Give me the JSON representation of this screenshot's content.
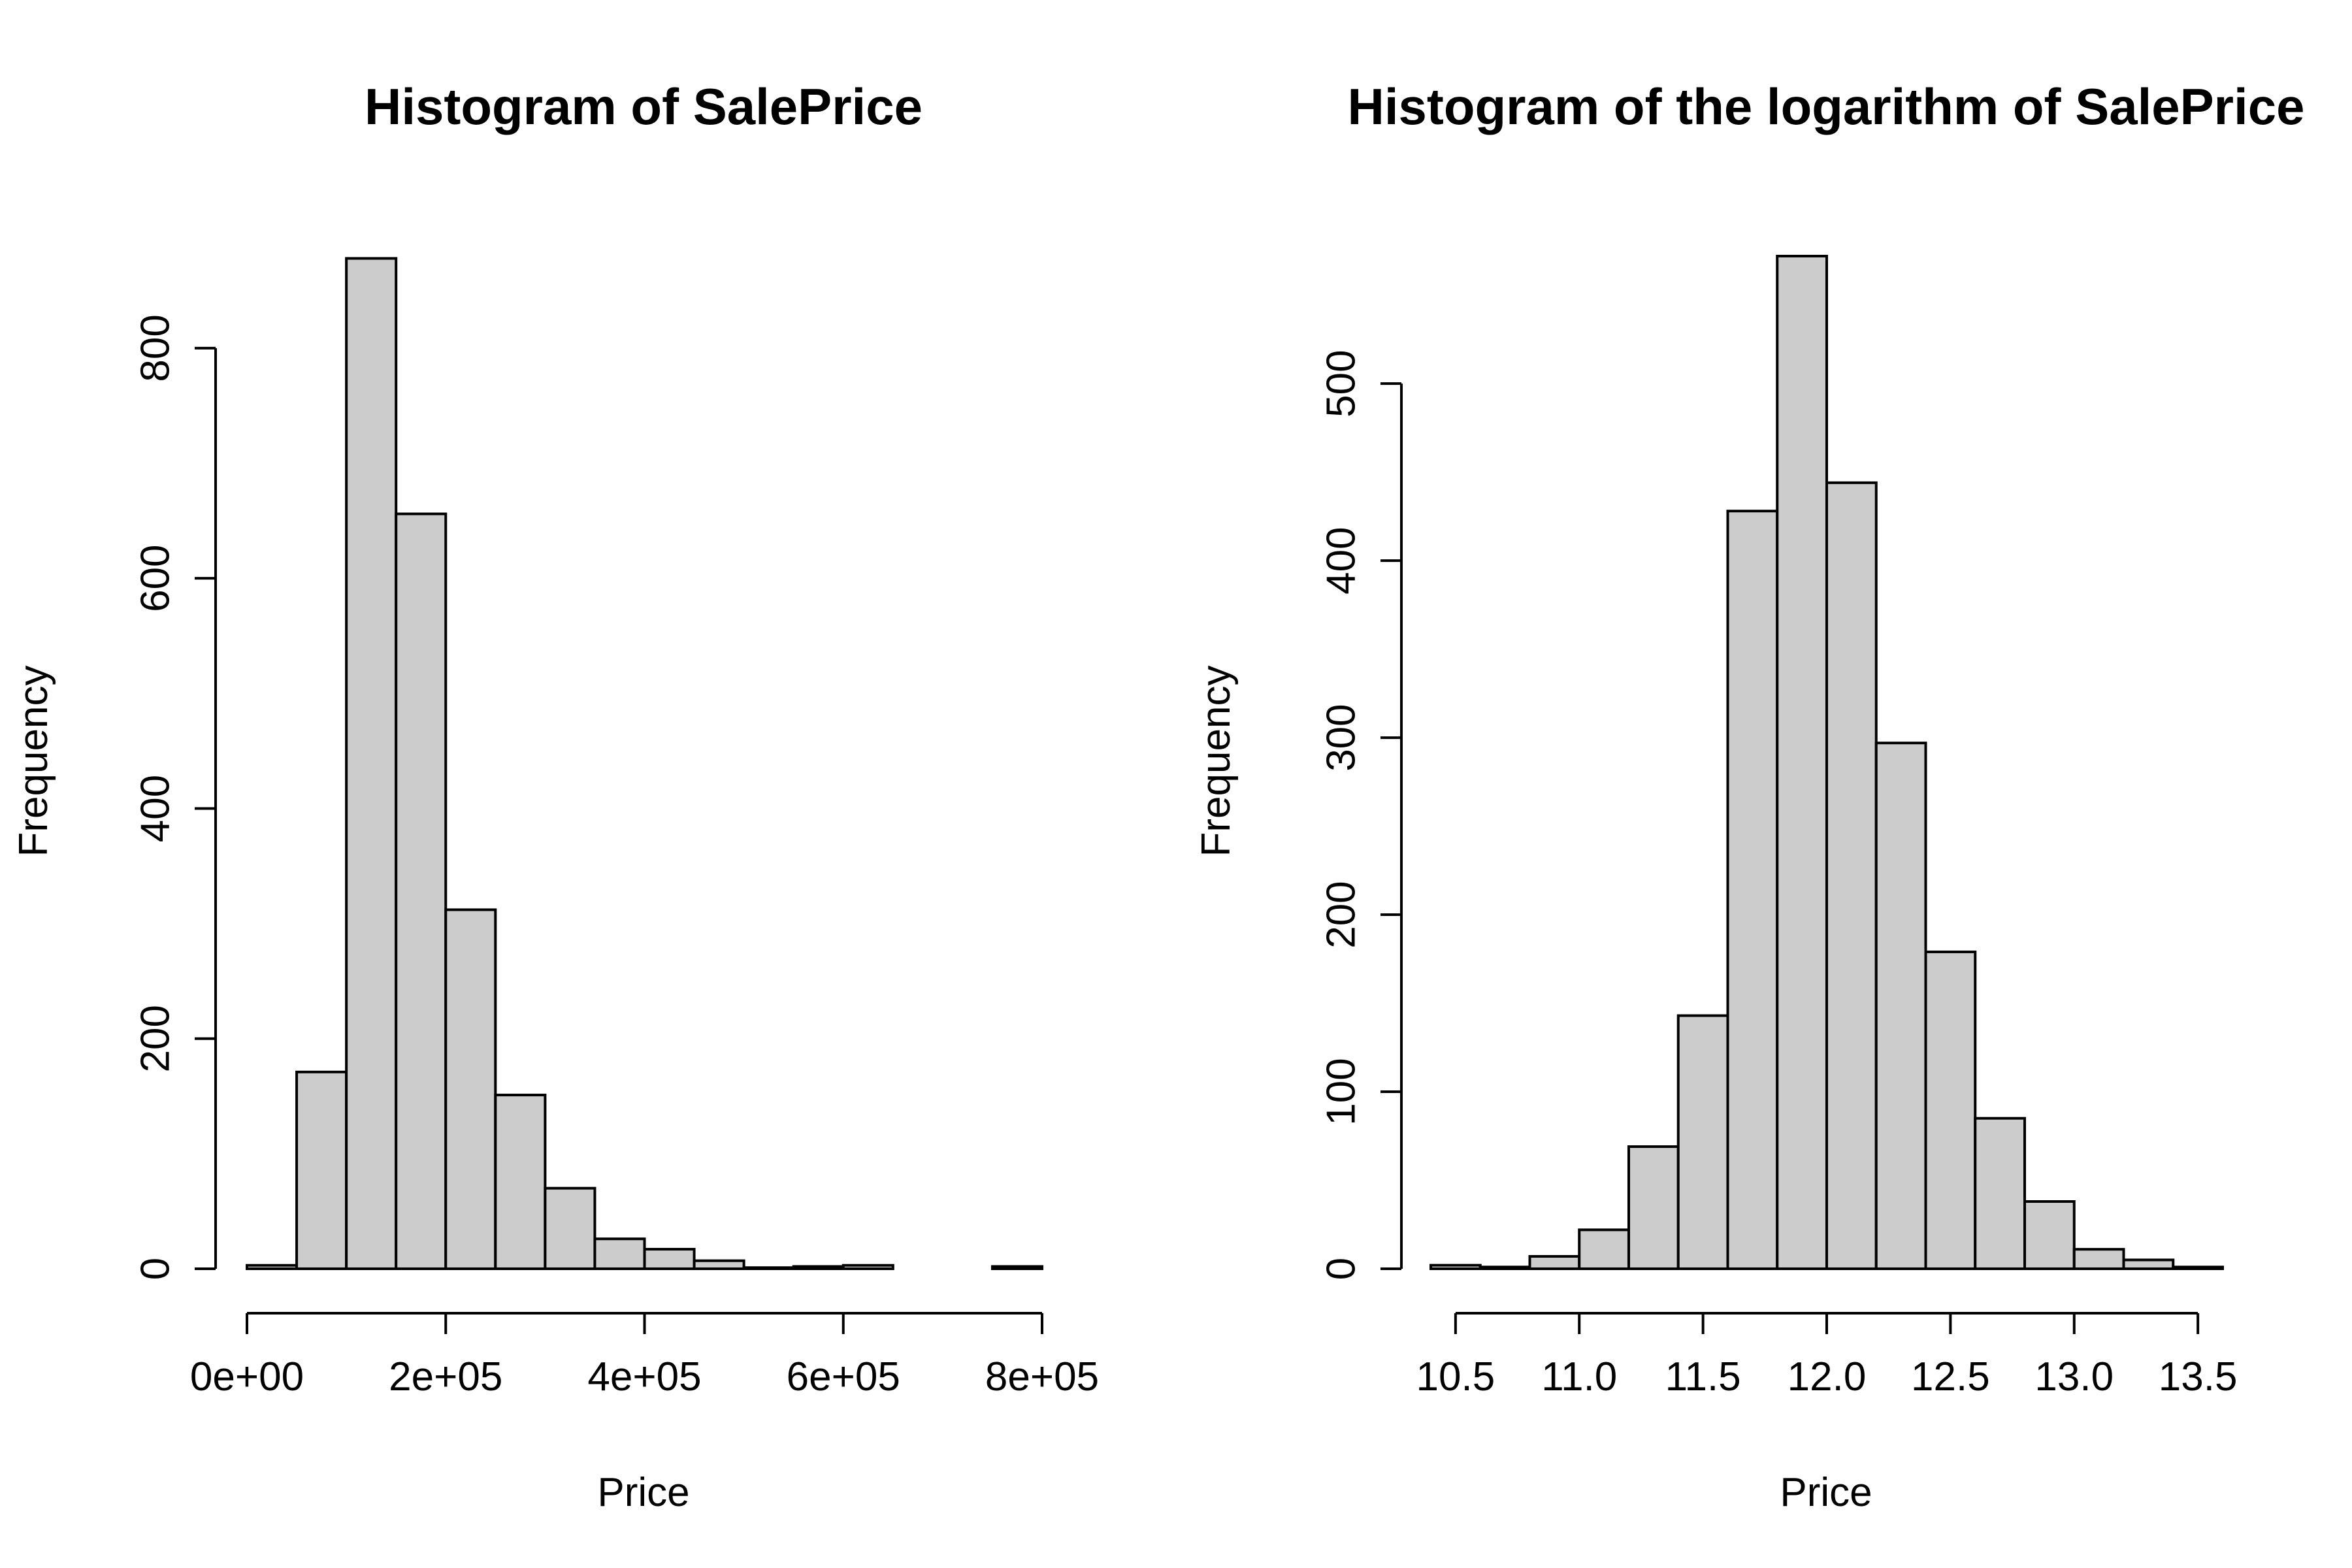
{
  "colors": {
    "bar_fill": "#cccccc",
    "bar_stroke": "#000000",
    "background": "#ffffff"
  },
  "chart_data": [
    {
      "type": "bar",
      "title": "Histogram of SalePrice",
      "xlabel": "Price",
      "ylabel": "Frequency",
      "xlim": [
        0,
        800000
      ],
      "ylim": [
        0,
        880
      ],
      "bin_width": 50000,
      "bin_starts": [
        0,
        50000,
        100000,
        150000,
        200000,
        250000,
        300000,
        350000,
        400000,
        450000,
        500000,
        550000,
        600000,
        650000,
        700000,
        750000
      ],
      "values": [
        3,
        171,
        878,
        656,
        312,
        151,
        70,
        26,
        17,
        7,
        1,
        2,
        3,
        0,
        0,
        2
      ],
      "x_ticks": [
        0,
        200000,
        400000,
        600000,
        800000
      ],
      "x_tick_labels": [
        "0e+00",
        "2e+05",
        "4e+05",
        "6e+05",
        "8e+05"
      ],
      "y_ticks": [
        0,
        200,
        400,
        600,
        800
      ],
      "y_tick_labels": [
        "0",
        "200",
        "400",
        "600",
        "800"
      ],
      "grid": false
    },
    {
      "type": "bar",
      "title": "Histogram of the logarithm of SalePrice",
      "xlabel": "Price",
      "ylabel": "Frequency",
      "xlim": [
        10.4,
        13.6
      ],
      "ylim": [
        0,
        572
      ],
      "bin_width": 0.2,
      "bin_starts": [
        10.4,
        10.6,
        10.8,
        11.0,
        11.2,
        11.4,
        11.6,
        11.8,
        12.0,
        12.2,
        12.4,
        12.6,
        12.8,
        13.0,
        13.2,
        13.4
      ],
      "values": [
        2,
        1,
        7,
        22,
        69,
        143,
        428,
        572,
        444,
        297,
        179,
        85,
        38,
        11,
        5,
        1
      ],
      "x_ticks": [
        10.5,
        11.0,
        11.5,
        12.0,
        12.5,
        13.0,
        13.5
      ],
      "x_tick_labels": [
        "10.5",
        "11.0",
        "11.5",
        "12.0",
        "12.5",
        "13.0",
        "13.5"
      ],
      "y_ticks": [
        0,
        100,
        200,
        300,
        400,
        500
      ],
      "y_tick_labels": [
        "0",
        "100",
        "200",
        "300",
        "400",
        "500"
      ],
      "grid": false
    }
  ]
}
